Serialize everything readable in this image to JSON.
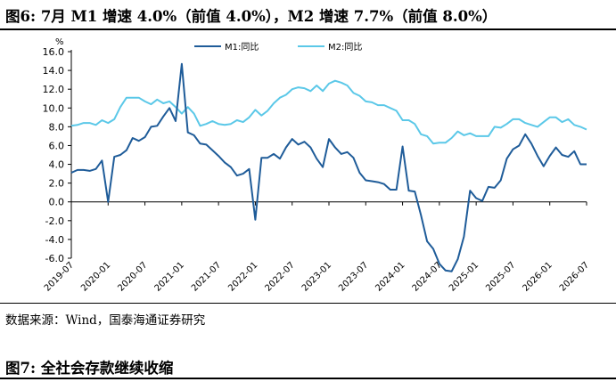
{
  "figure6": {
    "title": "图6:  7月 M1 增速 4.0%（前值 4.0%），M2 增速 7.7%（前值 8.0%）"
  },
  "source": "数据来源：Wind，国泰海通证券研究",
  "figure7": {
    "title": "图7:  全社会存款继续收缩"
  },
  "chart_data": {
    "type": "line",
    "ylabel": "%",
    "ylim": [
      -6.0,
      16.0
    ],
    "yticks": [
      "16.0",
      "14.0",
      "12.0",
      "10.0",
      "8.0",
      "6.0",
      "4.0",
      "2.0",
      "0.0",
      "-2.0",
      "-4.0",
      "-6.0"
    ],
    "xlim": [
      "2019-07",
      "2026-07"
    ],
    "xticks": [
      "2019-07",
      "2020-01",
      "2020-07",
      "2021-01",
      "2021-07",
      "2022-01",
      "2022-07",
      "2023-01",
      "2023-07",
      "2024-01",
      "2024-07",
      "2025-01",
      "2025-07",
      "2026-01",
      "2026-07"
    ],
    "grid": false,
    "legend_position": "top-center",
    "colors": {
      "M1": "#1f5c99",
      "M2": "#5bc8e8"
    },
    "series": [
      {
        "name": "M1:同比",
        "x": [
          "2019-07",
          "2019-08",
          "2019-09",
          "2019-10",
          "2019-11",
          "2019-12",
          "2020-01",
          "2020-02",
          "2020-03",
          "2020-04",
          "2020-05",
          "2020-06",
          "2020-07",
          "2020-08",
          "2020-09",
          "2020-10",
          "2020-11",
          "2020-12",
          "2021-01",
          "2021-02",
          "2021-03",
          "2021-04",
          "2021-05",
          "2021-06",
          "2021-07",
          "2021-08",
          "2021-09",
          "2021-10",
          "2021-11",
          "2021-12",
          "2022-01",
          "2022-02",
          "2022-03",
          "2022-04",
          "2022-05",
          "2022-06",
          "2022-07",
          "2022-08",
          "2022-09",
          "2022-10",
          "2022-11",
          "2022-12",
          "2023-01",
          "2023-02",
          "2023-03",
          "2023-04",
          "2023-05",
          "2023-06",
          "2023-07",
          "2023-08",
          "2023-09",
          "2023-10",
          "2023-11",
          "2023-12",
          "2024-01",
          "2024-02",
          "2024-03",
          "2024-04",
          "2024-05",
          "2024-06",
          "2024-07",
          "2024-08",
          "2024-09",
          "2024-10",
          "2024-11",
          "2024-12",
          "2025-01",
          "2025-02",
          "2025-03",
          "2025-04",
          "2025-05",
          "2025-06",
          "2025-07",
          "2025-08",
          "2025-09",
          "2025-10",
          "2025-11",
          "2025-12",
          "2026-01",
          "2026-02",
          "2026-03",
          "2026-04",
          "2026-05",
          "2026-06",
          "2026-07"
        ],
        "values": [
          3.1,
          3.4,
          3.4,
          3.3,
          3.5,
          4.4,
          0.0,
          4.8,
          5.0,
          5.5,
          6.8,
          6.5,
          6.9,
          8.0,
          8.1,
          9.1,
          10.0,
          8.6,
          14.7,
          7.4,
          7.1,
          6.2,
          6.1,
          5.5,
          4.9,
          4.2,
          3.7,
          2.8,
          3.0,
          3.5,
          -1.9,
          4.7,
          4.7,
          5.1,
          4.6,
          5.8,
          6.7,
          6.1,
          6.4,
          5.8,
          4.6,
          3.7,
          6.7,
          5.8,
          5.1,
          5.3,
          4.7,
          3.1,
          2.3,
          2.2,
          2.1,
          1.9,
          1.3,
          1.3,
          5.9,
          1.2,
          1.1,
          -1.4,
          -4.2,
          -5.0,
          -6.6,
          -7.3,
          -7.4,
          -6.1,
          -3.7,
          1.2,
          0.4,
          0.1,
          1.6,
          1.5,
          2.3,
          4.6,
          5.6,
          6.0,
          7.2,
          6.2,
          4.9,
          3.8,
          4.9,
          5.8,
          5.0,
          4.8,
          5.4,
          4.0,
          4.0
        ]
      },
      {
        "name": "M2:同比",
        "x": [
          "2019-07",
          "2019-08",
          "2019-09",
          "2019-10",
          "2019-11",
          "2019-12",
          "2020-01",
          "2020-02",
          "2020-03",
          "2020-04",
          "2020-05",
          "2020-06",
          "2020-07",
          "2020-08",
          "2020-09",
          "2020-10",
          "2020-11",
          "2020-12",
          "2021-01",
          "2021-02",
          "2021-03",
          "2021-04",
          "2021-05",
          "2021-06",
          "2021-07",
          "2021-08",
          "2021-09",
          "2021-10",
          "2021-11",
          "2021-12",
          "2022-01",
          "2022-02",
          "2022-03",
          "2022-04",
          "2022-05",
          "2022-06",
          "2022-07",
          "2022-08",
          "2022-09",
          "2022-10",
          "2022-11",
          "2022-12",
          "2023-01",
          "2023-02",
          "2023-03",
          "2023-04",
          "2023-05",
          "2023-06",
          "2023-07",
          "2023-08",
          "2023-09",
          "2023-10",
          "2023-11",
          "2023-12",
          "2024-01",
          "2024-02",
          "2024-03",
          "2024-04",
          "2024-05",
          "2024-06",
          "2024-07",
          "2024-08",
          "2024-09",
          "2024-10",
          "2024-11",
          "2024-12",
          "2025-01",
          "2025-02",
          "2025-03",
          "2025-04",
          "2025-05",
          "2025-06",
          "2025-07",
          "2025-08",
          "2025-09",
          "2025-10",
          "2025-11",
          "2025-12",
          "2026-01",
          "2026-02",
          "2026-03",
          "2026-04",
          "2026-05",
          "2026-06",
          "2026-07"
        ],
        "values": [
          8.1,
          8.2,
          8.4,
          8.4,
          8.2,
          8.7,
          8.4,
          8.8,
          10.1,
          11.1,
          11.1,
          11.1,
          10.7,
          10.4,
          10.9,
          10.5,
          10.7,
          10.1,
          9.4,
          10.1,
          9.4,
          8.1,
          8.3,
          8.6,
          8.3,
          8.2,
          8.3,
          8.7,
          8.5,
          9.0,
          9.8,
          9.2,
          9.7,
          10.5,
          11.1,
          11.4,
          12.0,
          12.2,
          12.1,
          11.8,
          12.4,
          11.8,
          12.6,
          12.9,
          12.7,
          12.4,
          11.6,
          11.3,
          10.7,
          10.6,
          10.3,
          10.3,
          10.0,
          9.7,
          8.7,
          8.7,
          8.3,
          7.2,
          7.0,
          6.2,
          6.3,
          6.3,
          6.8,
          7.5,
          7.1,
          7.3,
          7.0,
          7.0,
          7.0,
          8.0,
          7.9,
          8.3,
          8.8,
          8.8,
          8.4,
          8.2,
          8.0,
          8.5,
          9.0,
          9.0,
          8.5,
          8.8,
          8.2,
          8.0,
          7.7
        ]
      }
    ]
  }
}
